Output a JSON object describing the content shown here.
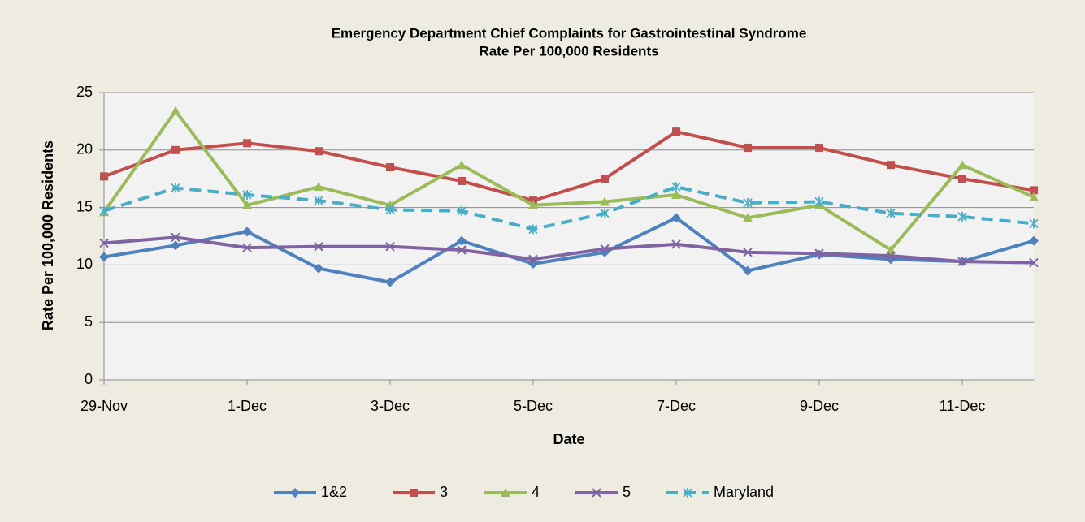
{
  "chart_data": {
    "type": "line",
    "title": "Emergency Department Chief Complaints for Gastrointestinal Syndrome",
    "subtitle": "Rate Per 100,000 Residents",
    "x_label": "Date",
    "y_label": "Rate Per 100,000 Residents",
    "categories": [
      "29-Nov",
      null,
      "1-Dec",
      null,
      "3-Dec",
      null,
      "5-Dec",
      null,
      "7-Dec",
      null,
      "9-Dec",
      null,
      "11-Dec",
      null
    ],
    "ylim": [
      0,
      25
    ],
    "yticks": [
      0,
      5,
      10,
      15,
      20,
      25
    ],
    "grid": true,
    "legend": "bottom",
    "series": [
      {
        "name": "1&2",
        "color": "#4f81bd",
        "marker": "diamond",
        "dash": false,
        "values": [
          10.7,
          11.7,
          12.9,
          9.7,
          8.5,
          12.1,
          10.1,
          11.1,
          14.1,
          9.5,
          10.9,
          10.5,
          10.3,
          12.1
        ]
      },
      {
        "name": "3",
        "color": "#c0504d",
        "marker": "square",
        "dash": false,
        "values": [
          17.7,
          20.0,
          20.6,
          19.9,
          18.5,
          17.3,
          15.6,
          17.5,
          21.6,
          20.2,
          20.2,
          18.7,
          17.5,
          16.5
        ]
      },
      {
        "name": "4",
        "color": "#9bbb59",
        "marker": "triangle",
        "dash": false,
        "values": [
          14.6,
          23.4,
          15.2,
          16.8,
          15.2,
          18.7,
          15.2,
          15.5,
          16.1,
          14.1,
          15.2,
          11.3,
          18.7,
          15.9
        ]
      },
      {
        "name": "5",
        "color": "#8064a2",
        "marker": "cross",
        "dash": false,
        "values": [
          11.9,
          12.4,
          11.5,
          11.6,
          11.6,
          11.3,
          10.5,
          11.4,
          11.8,
          11.1,
          11.0,
          10.8,
          10.3,
          10.2
        ]
      },
      {
        "name": "Maryland",
        "color": "#4bacc6",
        "marker": "star",
        "dash": true,
        "values": [
          14.7,
          16.7,
          16.1,
          15.6,
          14.8,
          14.7,
          13.1,
          14.5,
          16.8,
          15.4,
          15.5,
          14.5,
          14.2,
          13.6
        ]
      }
    ]
  }
}
